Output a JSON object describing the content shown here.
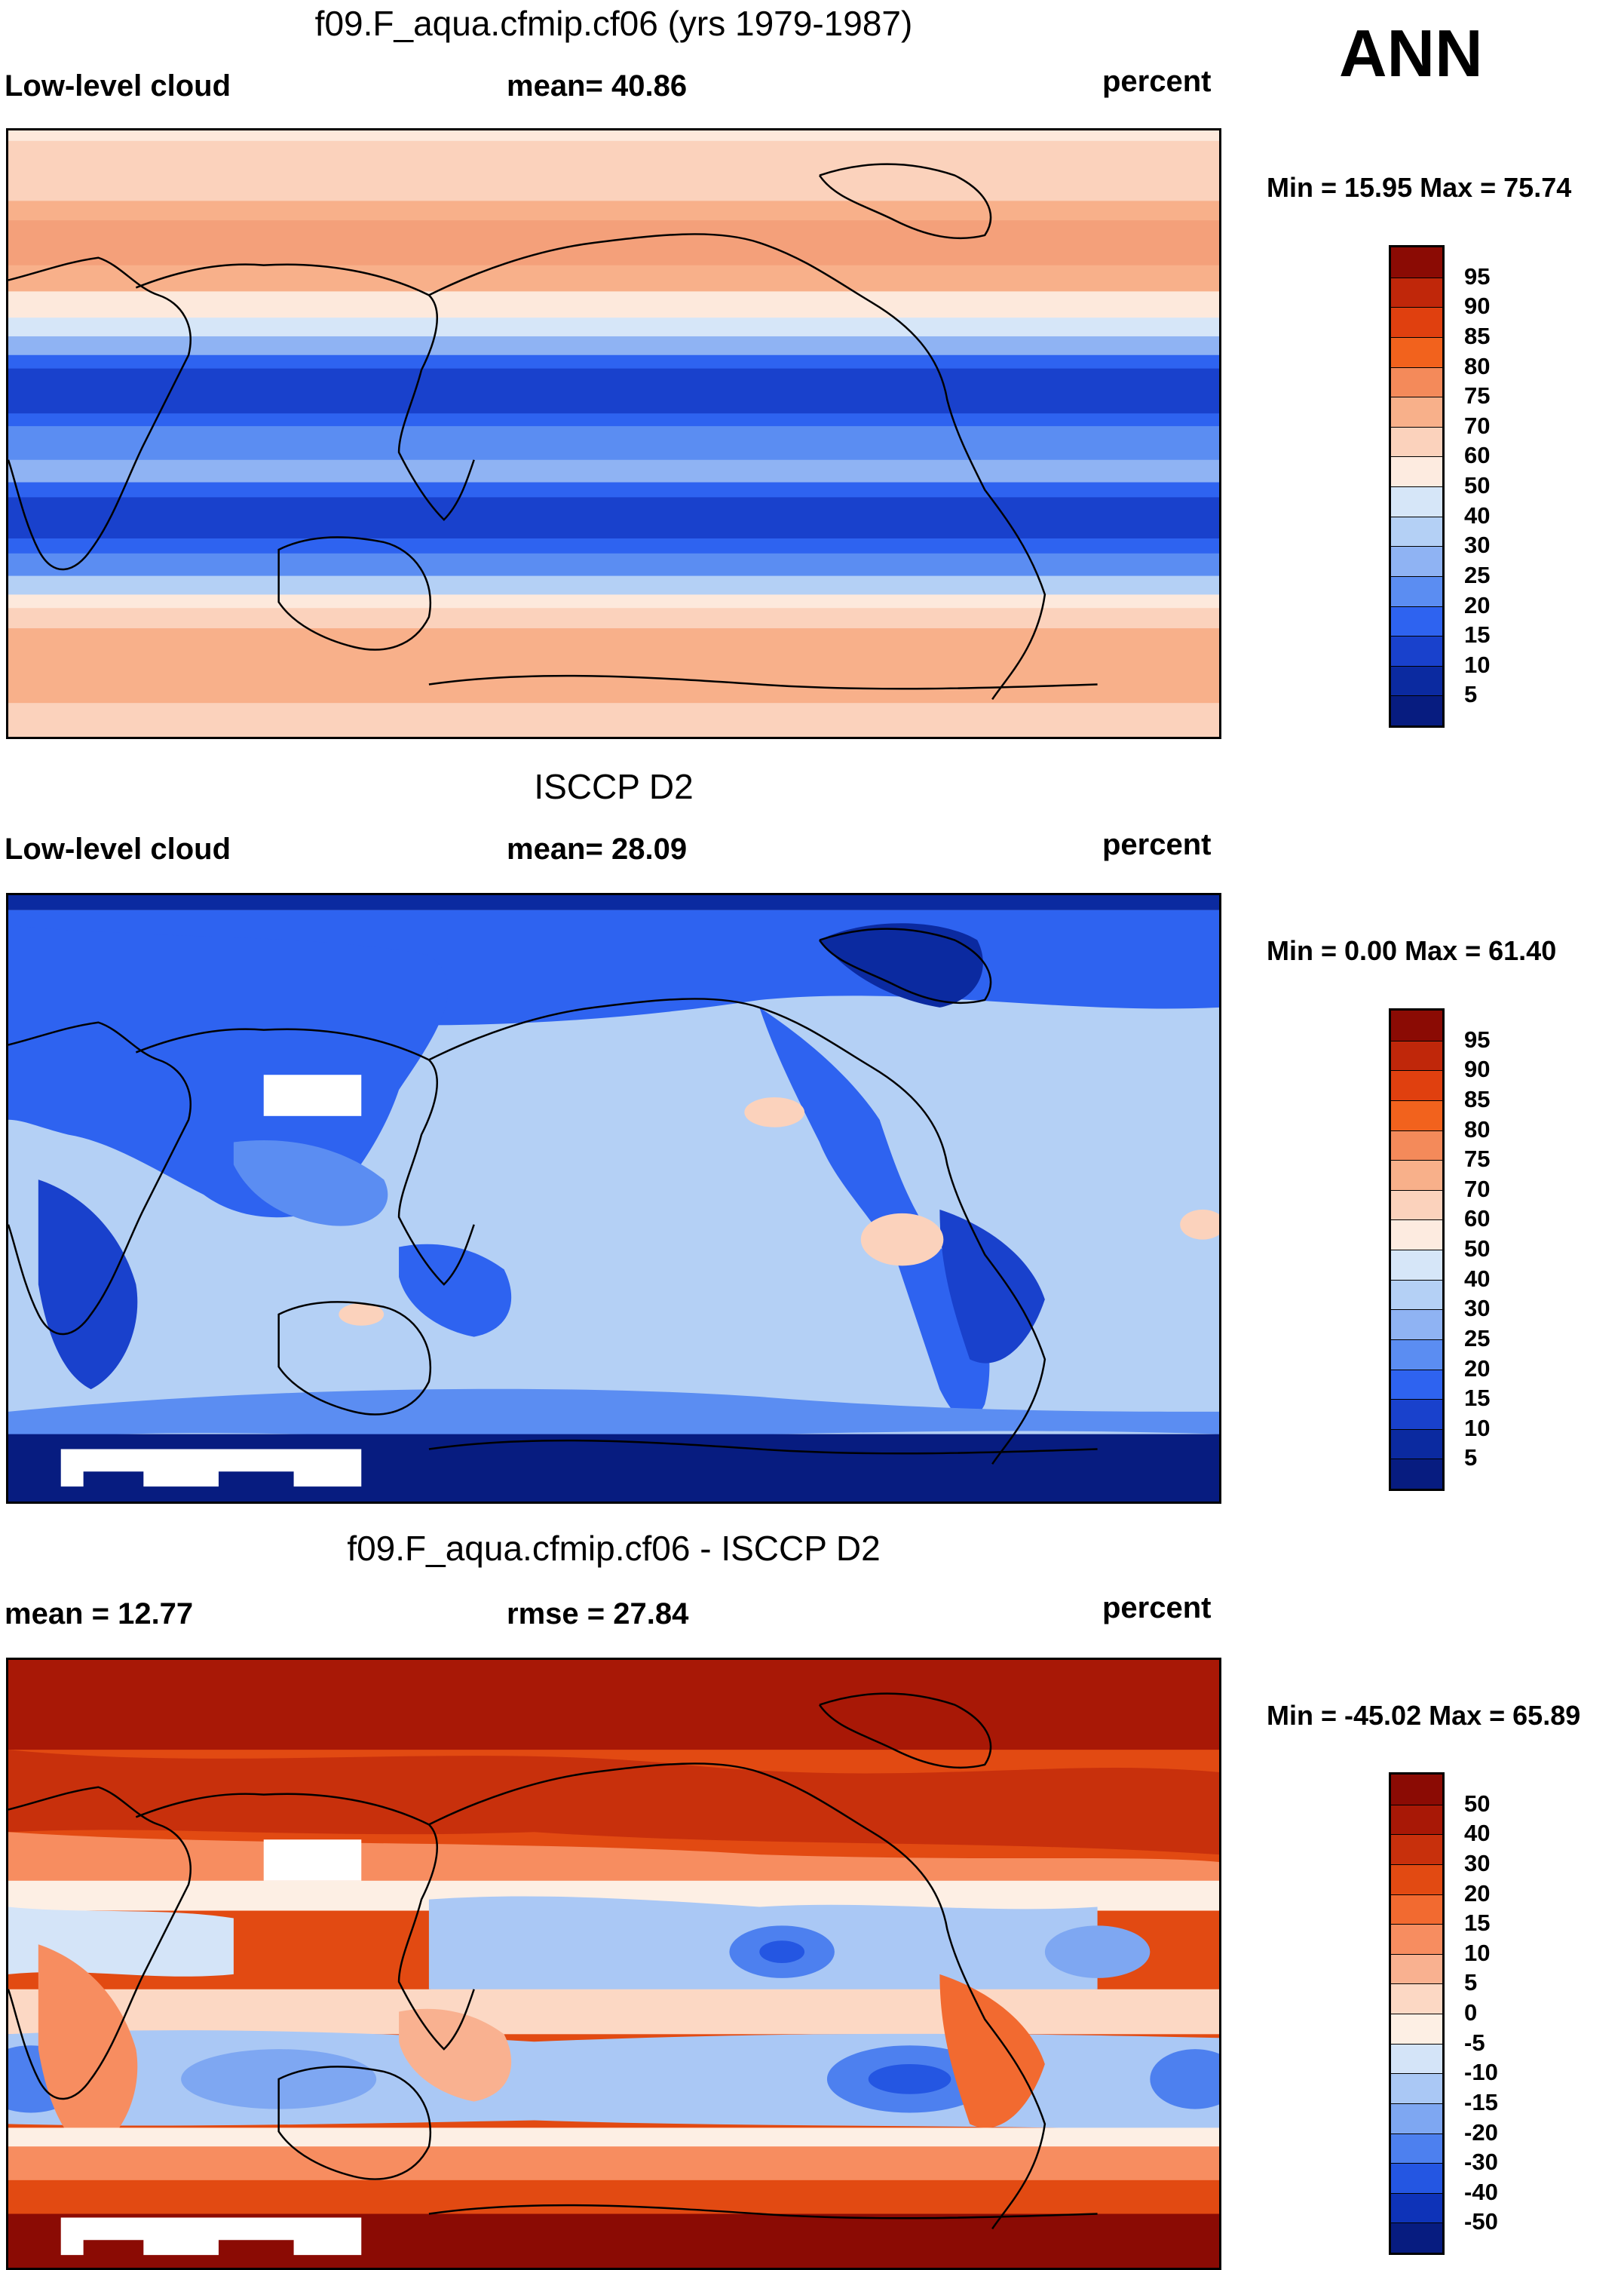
{
  "season": "ANN",
  "units": "percent",
  "panels": [
    {
      "title": "f09.F_aqua.cfmip.cf06 (yrs 1979-1987)",
      "left_label": "Low-level cloud",
      "center_label": "mean=  40.86",
      "right_label": "percent",
      "minmax": "Min =  15.95 Max =  75.74",
      "colorbar_labels": [
        "95",
        "90",
        "85",
        "80",
        "75",
        "70",
        "60",
        "50",
        "40",
        "30",
        "25",
        "20",
        "15",
        "10",
        "5"
      ],
      "colorbar_colors": [
        "#8b0b04",
        "#c0270a",
        "#e0400f",
        "#f2621d",
        "#f48a5a",
        "#f8b08a",
        "#fbd2bc",
        "#fdebe0",
        "#d6e6f8",
        "#b4d0f5",
        "#8fb3f3",
        "#5b8df2",
        "#2e63f0",
        "#1941cc",
        "#0b2aa0",
        "#071c80"
      ]
    },
    {
      "title": "ISCCP D2",
      "left_label": "Low-level cloud",
      "center_label": "mean=  28.09",
      "right_label": "percent",
      "minmax": "Min =   0.00 Max =  61.40",
      "colorbar_labels": [
        "95",
        "90",
        "85",
        "80",
        "75",
        "70",
        "60",
        "50",
        "40",
        "30",
        "25",
        "20",
        "15",
        "10",
        "5"
      ],
      "colorbar_colors": [
        "#8b0b04",
        "#c0270a",
        "#e0400f",
        "#f2621d",
        "#f48a5a",
        "#f8b08a",
        "#fbd2bc",
        "#fdebe0",
        "#d6e6f8",
        "#b4d0f5",
        "#8fb3f3",
        "#5b8df2",
        "#2e63f0",
        "#1941cc",
        "#0b2aa0",
        "#071c80"
      ]
    },
    {
      "title": "f09.F_aqua.cfmip.cf06 - ISCCP D2",
      "left_label": "mean =  12.77",
      "center_label": "rmse =  27.84",
      "right_label": "percent",
      "minmax": "Min = -45.02 Max =  65.89",
      "colorbar_labels": [
        "50",
        "40",
        "30",
        "20",
        "15",
        "10",
        "5",
        "0",
        "-5",
        "-10",
        "-15",
        "-20",
        "-30",
        "-40",
        "-50"
      ],
      "colorbar_colors": [
        "#8b0b04",
        "#a81806",
        "#c8300c",
        "#e24a12",
        "#f26a30",
        "#f78d60",
        "#f9b190",
        "#fcd8c4",
        "#fdefe4",
        "#d4e4f8",
        "#aac8f5",
        "#7ea7f2",
        "#4d80ef",
        "#2456e2",
        "#0e33b8",
        "#071c80"
      ]
    }
  ]
}
